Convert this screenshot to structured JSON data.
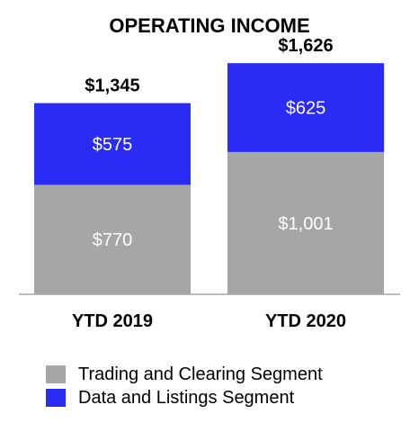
{
  "chart_data": {
    "type": "bar",
    "stacked": true,
    "title": "OPERATING INCOME",
    "categories": [
      "YTD 2019",
      "YTD 2020"
    ],
    "series": [
      {
        "name": "Trading and Clearing Segment",
        "values": [
          770,
          1001
        ],
        "labels": [
          "$770",
          "$1,001"
        ],
        "color": "#A6A6A6"
      },
      {
        "name": "Data and Listings Segment",
        "values": [
          575,
          625
        ],
        "labels": [
          "$575",
          "$625"
        ],
        "color": "#2A2CF5"
      }
    ],
    "totals": [
      1345,
      1626
    ],
    "total_labels": [
      "$1,345",
      "$1,626"
    ],
    "ylim": [
      0,
      1950
    ],
    "grid": false,
    "legend_position": "bottom-left"
  }
}
